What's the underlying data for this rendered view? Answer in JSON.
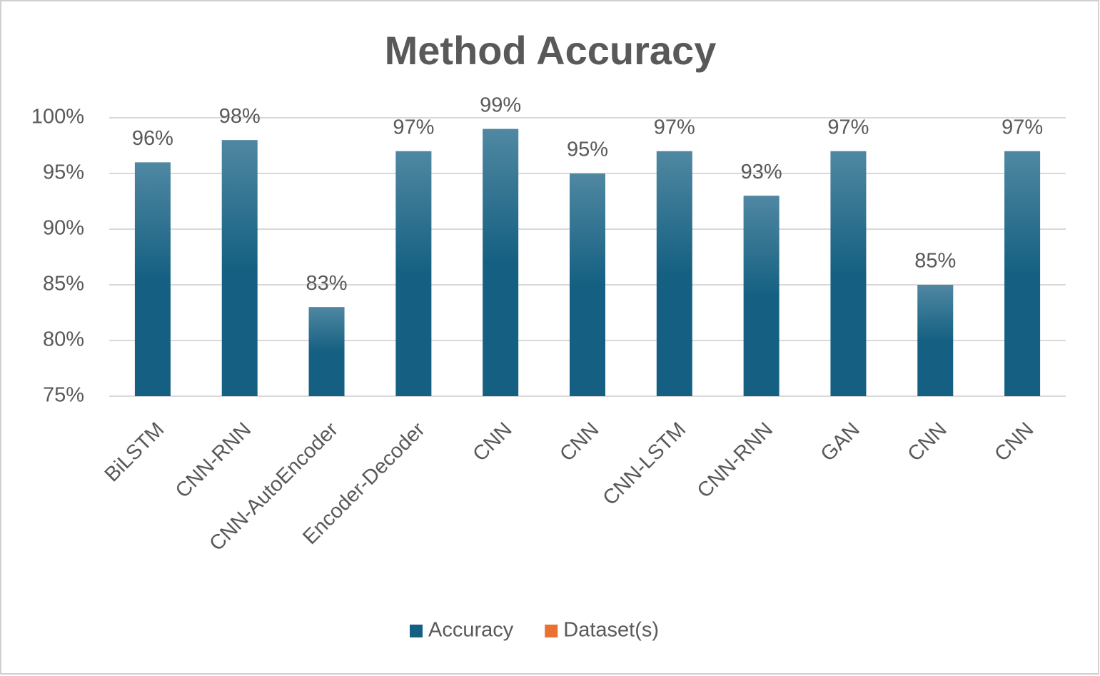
{
  "chart_data": {
    "type": "bar",
    "title": "Method Accuracy",
    "categories": [
      "BiLSTM",
      "CNN-RNN",
      "CNN-AutoEncoder",
      "Encoder-Decoder",
      "CNN",
      "CNN",
      "CNN-LSTM",
      "CNN-RNN",
      "GAN",
      "CNN",
      "CNN"
    ],
    "series": [
      {
        "name": "Accuracy",
        "color": "#156082",
        "values": [
          96,
          98,
          83,
          97,
          99,
          95,
          97,
          93,
          97,
          85,
          97
        ],
        "value_labels": [
          "96%",
          "98%",
          "83%",
          "97%",
          "99%",
          "95%",
          "97%",
          "93%",
          "97%",
          "85%",
          "97%"
        ]
      },
      {
        "name": "Dataset(s)",
        "color": "#e97132",
        "values": [
          null,
          null,
          null,
          null,
          null,
          null,
          null,
          null,
          null,
          null,
          null
        ]
      }
    ],
    "ylim": [
      75,
      100
    ],
    "yticks": [
      {
        "value": 75,
        "label": "75%"
      },
      {
        "value": 80,
        "label": "80%"
      },
      {
        "value": 85,
        "label": "85%"
      },
      {
        "value": 90,
        "label": "90%"
      },
      {
        "value": 95,
        "label": "95%"
      },
      {
        "value": 100,
        "label": "100%"
      }
    ],
    "grid": true,
    "legend": "bottom"
  }
}
